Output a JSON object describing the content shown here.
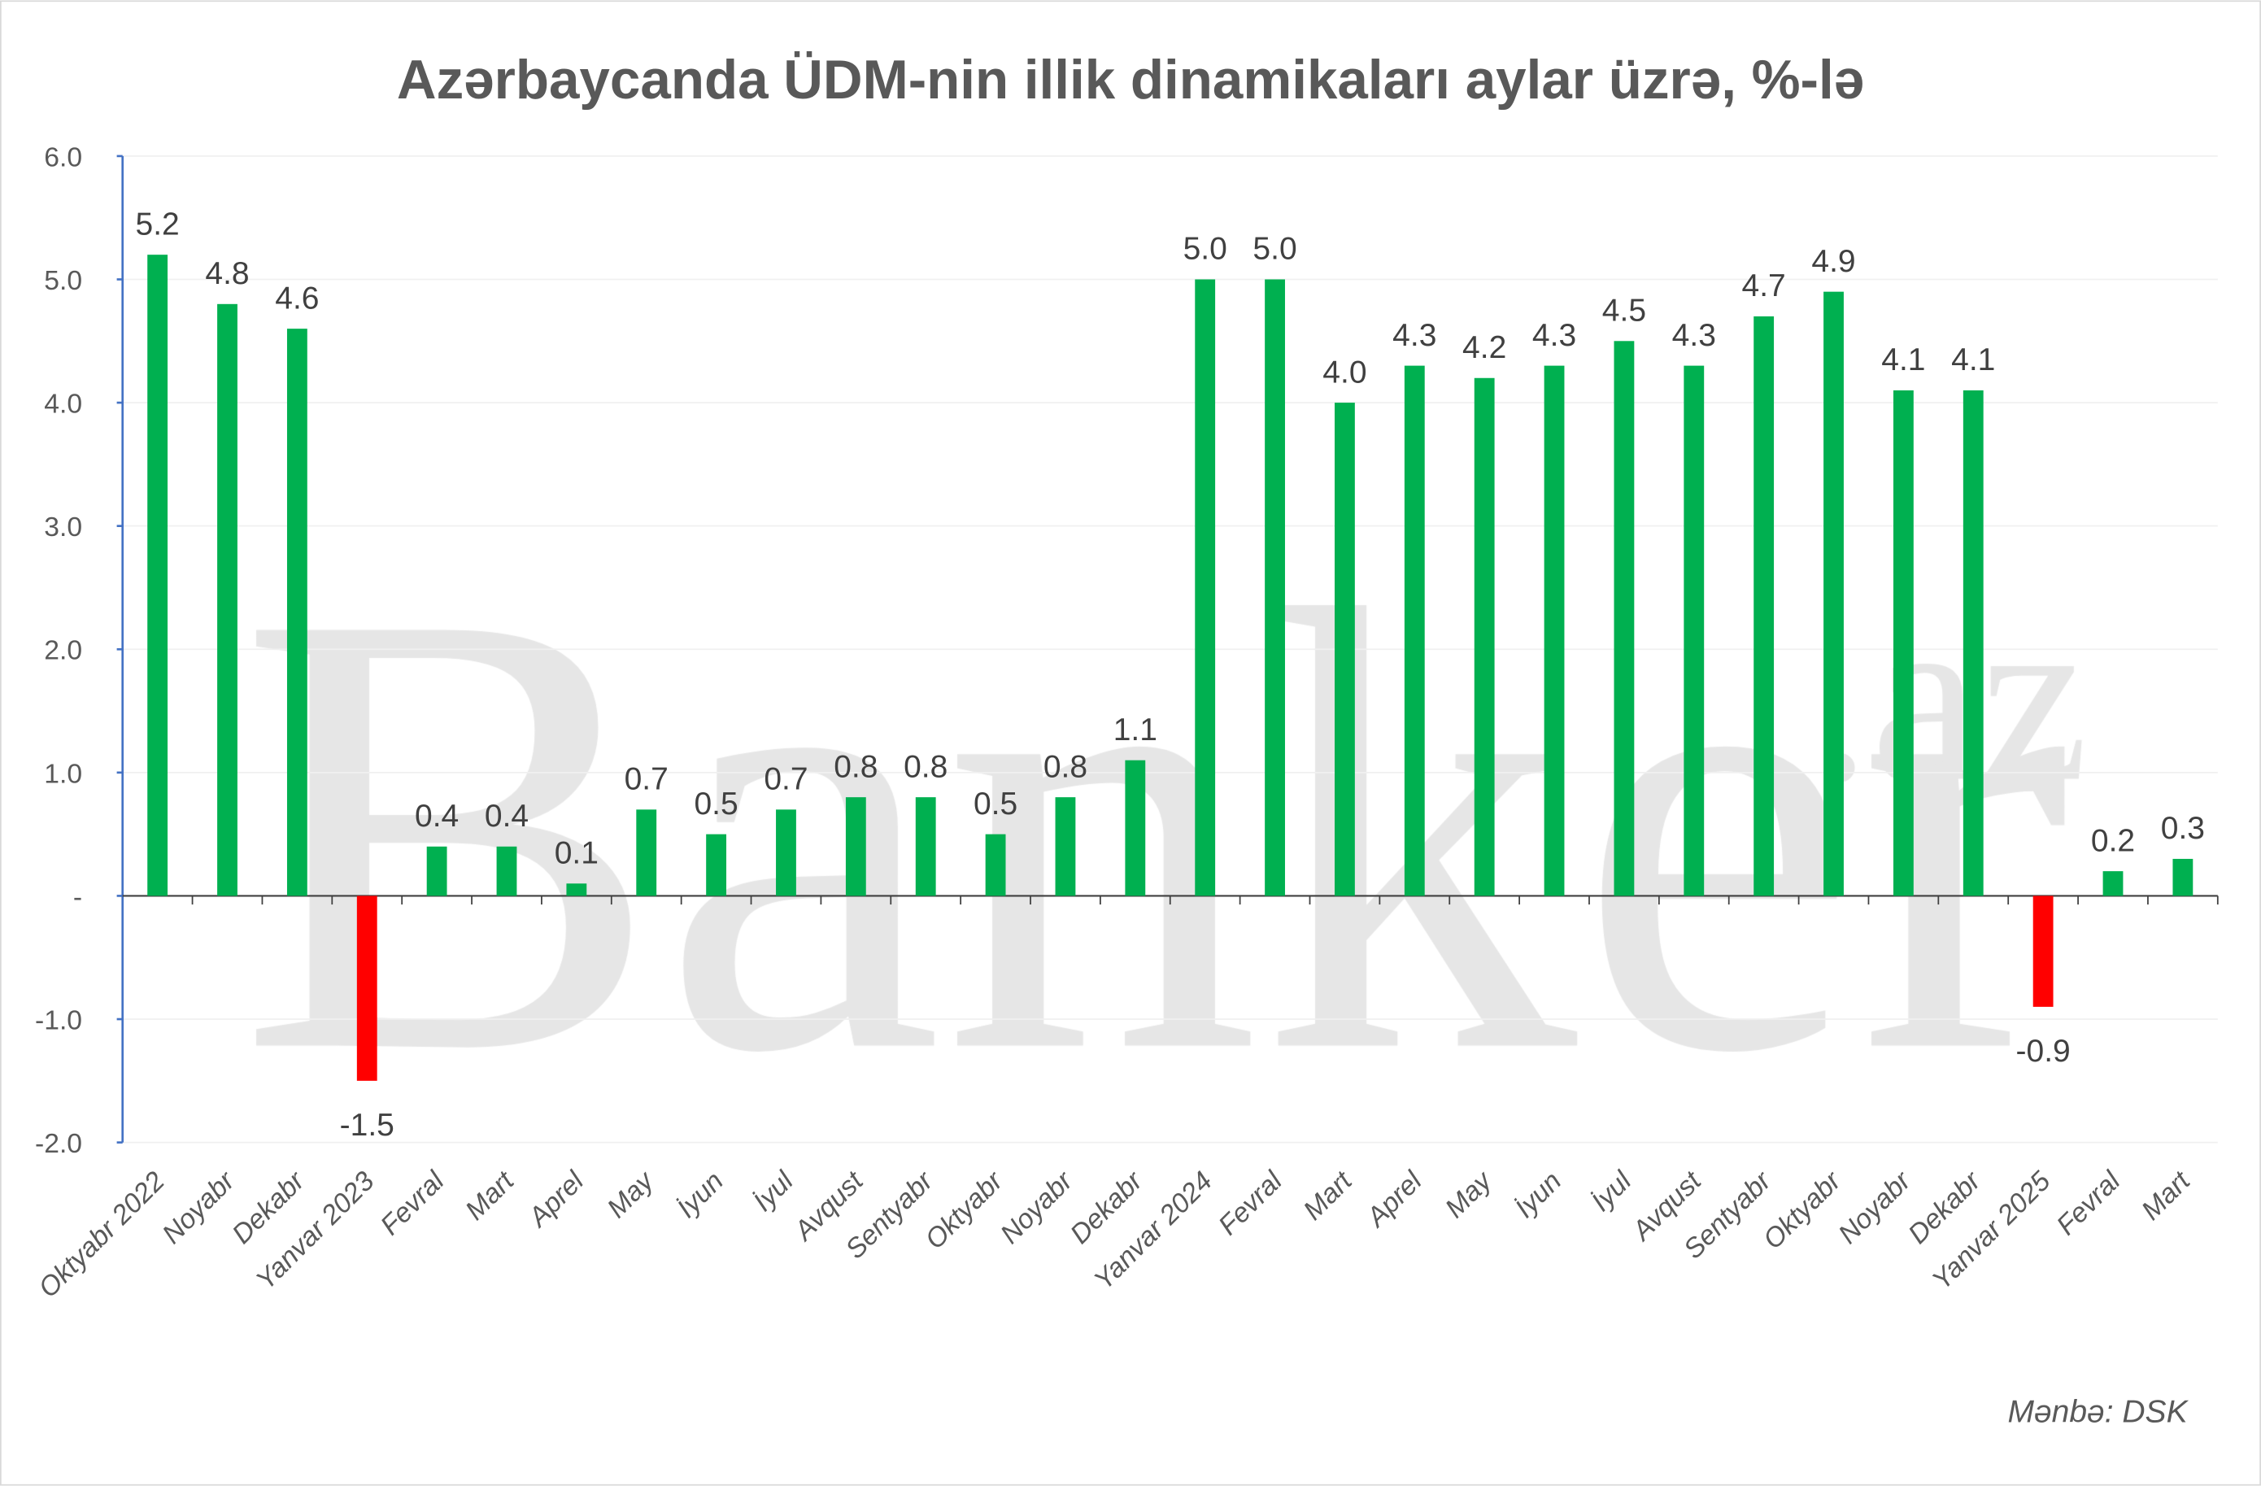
{
  "chart_data": {
    "type": "bar",
    "title": "Azərbaycanda ÜDM-nin illik dinamikaları aylar üzrə, %-lə",
    "xlabel": "",
    "ylabel": "",
    "ylim": [
      -2,
      6
    ],
    "yticks": [
      6,
      5,
      4,
      3,
      2,
      1,
      0,
      -1,
      -2
    ],
    "ytick_labels": [
      "6.0",
      "5.0",
      "4.0",
      "3.0",
      "2.0",
      "1.0",
      "-",
      "-1.0",
      "-2.0"
    ],
    "grid": true,
    "categories": [
      "Oktyabr 2022",
      "Noyabr",
      "Dekabr",
      "Yanvar 2023",
      "Fevral",
      "Mart",
      "Aprel",
      "May",
      "İyun",
      "İyul",
      "Avqust",
      "Sentyabr",
      "Oktyabr",
      "Noyabr",
      "Dekabr",
      "Yanvar 2024",
      "Fevral",
      "Mart",
      "Aprel",
      "May",
      "İyun",
      "İyul",
      "Avqust",
      "Sentyabr",
      "Oktyabr",
      "Noyabr",
      "Dekabr",
      "Yanvar 2025",
      "Fevral",
      "Mart"
    ],
    "values": [
      5.2,
      4.8,
      4.6,
      -1.5,
      0.4,
      0.4,
      0.1,
      0.7,
      0.5,
      0.7,
      0.8,
      0.8,
      0.5,
      0.8,
      1.1,
      5.0,
      5.0,
      4.0,
      4.3,
      4.2,
      4.3,
      4.5,
      4.3,
      4.7,
      4.9,
      4.1,
      4.1,
      -0.9,
      0.2,
      0.3
    ],
    "data_labels": [
      "5.2",
      "4.8",
      "4.6",
      "-1.5",
      "0.4",
      "0.4",
      "0.1",
      "0.7",
      "0.5",
      "0.7",
      "0.8",
      "0.8",
      "0.5",
      "0.8",
      "1.1",
      "5.0",
      "5.0",
      "4.0",
      "4.3",
      "4.2",
      "4.3",
      "4.5",
      "4.3",
      "4.7",
      "4.9",
      "4.1",
      "4.1",
      "-0.9",
      "0.2",
      "0.3"
    ],
    "colors": {
      "positive": "#00b050",
      "negative": "#ff0000",
      "axis": "#4472c4",
      "grid": "#f0f0f0",
      "text": "#404040"
    }
  },
  "watermark": "Banker.az",
  "source": "Mənbə: DSK"
}
